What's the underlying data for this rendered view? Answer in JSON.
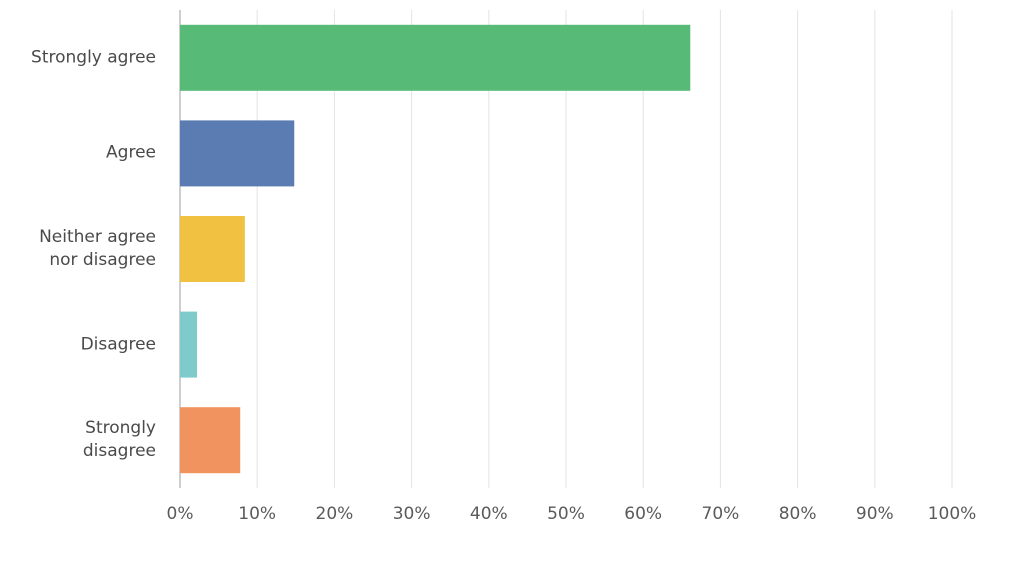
{
  "chart_data": {
    "type": "barh",
    "categories": [
      "Strongly agree",
      "Agree",
      "Neither agree\nnor disagree",
      "Disagree",
      "Strongly\ndisagree"
    ],
    "values": [
      66.1,
      14.8,
      8.4,
      2.2,
      7.8
    ],
    "colors": [
      "#57bb77",
      "#5b7bb3",
      "#f1c142",
      "#7fcaca",
      "#f1935e"
    ],
    "xlim": [
      0,
      100
    ],
    "xticks": [
      {
        "value": 0,
        "label": "0%"
      },
      {
        "value": 10,
        "label": "10%"
      },
      {
        "value": 20,
        "label": "20%"
      },
      {
        "value": 30,
        "label": "30%"
      },
      {
        "value": 40,
        "label": "40%"
      },
      {
        "value": 50,
        "label": "50%"
      },
      {
        "value": 60,
        "label": "60%"
      },
      {
        "value": 70,
        "label": "70%"
      },
      {
        "value": 80,
        "label": "80%"
      },
      {
        "value": 90,
        "label": "90%"
      },
      {
        "value": 100,
        "label": "100%"
      }
    ],
    "grid": true
  }
}
